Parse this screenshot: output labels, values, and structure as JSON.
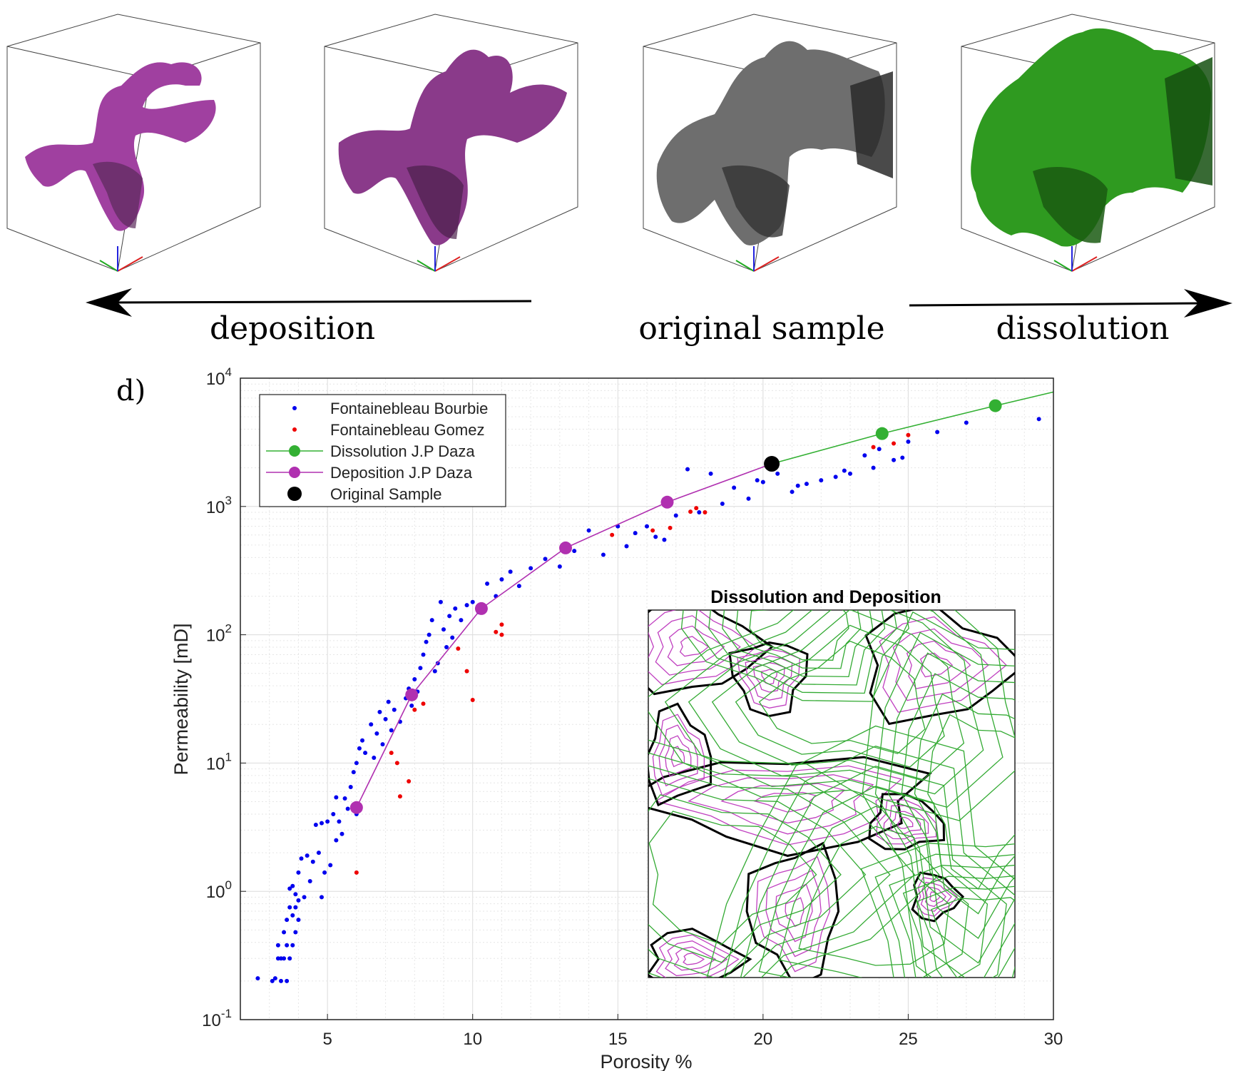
{
  "top_panel": {
    "labels": {
      "deposition": "deposition",
      "original": "original sample",
      "dissolution": "dissolution"
    },
    "cube_colors": [
      "#a040a0",
      "#8a3a8a",
      "#6e6e6e",
      "#2f9a20"
    ]
  },
  "panel_label": "d)",
  "chart_data": {
    "type": "scatter",
    "xlabel": "Porosity %",
    "ylabel": "Permeability [mD]",
    "xlim": [
      2,
      30
    ],
    "ylim": [
      0.1,
      10000
    ],
    "yscale": "log",
    "xticks": [
      5,
      10,
      15,
      20,
      25,
      30
    ],
    "yticks": [
      {
        "value": 0.1,
        "base": "10",
        "exp": "-1"
      },
      {
        "value": 1,
        "base": "10",
        "exp": "0"
      },
      {
        "value": 10,
        "base": "10",
        "exp": "1"
      },
      {
        "value": 100,
        "base": "10",
        "exp": "2"
      },
      {
        "value": 1000,
        "base": "10",
        "exp": "3"
      },
      {
        "value": 10000,
        "base": "10",
        "exp": "4"
      }
    ],
    "grid": true,
    "legend_position": "top-left",
    "series": [
      {
        "name": "Fontainebleau Bourbie",
        "style": "dots",
        "color": "#0000ee",
        "points": [
          [
            2.6,
            0.21
          ],
          [
            3.1,
            0.2
          ],
          [
            3.2,
            0.21
          ],
          [
            3.3,
            0.3
          ],
          [
            3.3,
            0.38
          ],
          [
            3.4,
            0.3
          ],
          [
            3.4,
            0.2
          ],
          [
            3.5,
            0.48
          ],
          [
            3.5,
            0.3
          ],
          [
            3.6,
            0.38
          ],
          [
            3.6,
            0.2
          ],
          [
            3.6,
            0.6
          ],
          [
            3.7,
            1.05
          ],
          [
            3.7,
            0.75
          ],
          [
            3.7,
            0.3
          ],
          [
            3.8,
            1.1
          ],
          [
            3.8,
            0.65
          ],
          [
            3.8,
            0.38
          ],
          [
            3.9,
            0.95
          ],
          [
            3.9,
            0.75
          ],
          [
            3.9,
            0.48
          ],
          [
            4.0,
            0.85
          ],
          [
            4.0,
            0.6
          ],
          [
            4.0,
            1.4
          ],
          [
            4.1,
            1.8
          ],
          [
            4.2,
            0.9
          ],
          [
            4.3,
            1.9
          ],
          [
            4.4,
            1.2
          ],
          [
            4.5,
            1.7
          ],
          [
            4.6,
            3.3
          ],
          [
            4.7,
            2.0
          ],
          [
            4.8,
            0.9
          ],
          [
            4.8,
            3.4
          ],
          [
            4.9,
            1.4
          ],
          [
            5.0,
            3.5
          ],
          [
            5.1,
            1.6
          ],
          [
            5.2,
            4.0
          ],
          [
            5.3,
            2.5
          ],
          [
            5.3,
            5.4
          ],
          [
            5.4,
            3.5
          ],
          [
            5.5,
            2.8
          ],
          [
            5.6,
            5.3
          ],
          [
            5.7,
            4.4
          ],
          [
            5.8,
            6.5
          ],
          [
            5.9,
            8.5
          ],
          [
            6.0,
            10.0
          ],
          [
            6.0,
            4.0
          ],
          [
            6.1,
            13
          ],
          [
            6.2,
            15
          ],
          [
            6.3,
            12
          ],
          [
            6.5,
            20
          ],
          [
            6.6,
            11
          ],
          [
            6.7,
            17
          ],
          [
            6.8,
            25
          ],
          [
            6.9,
            14
          ],
          [
            7.0,
            22
          ],
          [
            7.1,
            30
          ],
          [
            7.2,
            18
          ],
          [
            7.3,
            26
          ],
          [
            7.5,
            21
          ],
          [
            7.7,
            32
          ],
          [
            7.8,
            38
          ],
          [
            7.9,
            28
          ],
          [
            8.0,
            45
          ],
          [
            8.1,
            36
          ],
          [
            8.2,
            55
          ],
          [
            8.3,
            70
          ],
          [
            8.4,
            88
          ],
          [
            8.5,
            100
          ],
          [
            8.6,
            130
          ],
          [
            8.7,
            52
          ],
          [
            8.8,
            60
          ],
          [
            8.9,
            180
          ],
          [
            9.0,
            110
          ],
          [
            9.1,
            80
          ],
          [
            9.2,
            140
          ],
          [
            9.3,
            95
          ],
          [
            9.4,
            160
          ],
          [
            9.6,
            130
          ],
          [
            9.8,
            170
          ],
          [
            10.0,
            180
          ],
          [
            10.2,
            150
          ],
          [
            10.5,
            250
          ],
          [
            10.8,
            200
          ],
          [
            11.0,
            270
          ],
          [
            11.3,
            310
          ],
          [
            11.6,
            240
          ],
          [
            12.0,
            330
          ],
          [
            12.5,
            390
          ],
          [
            13.0,
            340
          ],
          [
            13.5,
            450
          ],
          [
            14.0,
            650
          ],
          [
            14.5,
            420
          ],
          [
            15.0,
            700
          ],
          [
            15.3,
            490
          ],
          [
            15.6,
            620
          ],
          [
            16.0,
            700
          ],
          [
            16.3,
            580
          ],
          [
            16.6,
            550
          ],
          [
            17.0,
            850
          ],
          [
            17.4,
            1950
          ],
          [
            17.8,
            900
          ],
          [
            18.2,
            1800
          ],
          [
            18.6,
            1050
          ],
          [
            19.0,
            1400
          ],
          [
            19.5,
            1150
          ],
          [
            20.0,
            1550
          ],
          [
            20.5,
            1800
          ],
          [
            21.0,
            1300
          ],
          [
            21.5,
            1500
          ],
          [
            22.0,
            1600
          ],
          [
            22.5,
            1700
          ],
          [
            23.0,
            1800
          ],
          [
            23.5,
            2500
          ],
          [
            24.0,
            2800
          ],
          [
            24.5,
            2300
          ],
          [
            25.0,
            3200
          ],
          [
            26.0,
            3800
          ],
          [
            27.0,
            4500
          ],
          [
            28.0,
            6000
          ],
          [
            29.5,
            4800
          ],
          [
            22.8,
            1900
          ],
          [
            23.8,
            2000
          ],
          [
            24.8,
            2400
          ],
          [
            21.2,
            1450
          ],
          [
            19.8,
            1600
          ]
        ]
      },
      {
        "name": "Fontainebleau Gomez",
        "style": "dots",
        "color": "#ee0000",
        "points": [
          [
            6.0,
            1.4
          ],
          [
            7.2,
            12
          ],
          [
            7.4,
            10
          ],
          [
            7.5,
            5.5
          ],
          [
            7.8,
            7.2
          ],
          [
            8.0,
            26
          ],
          [
            8.3,
            29
          ],
          [
            9.5,
            78
          ],
          [
            9.8,
            52
          ],
          [
            10.0,
            31
          ],
          [
            10.8,
            105
          ],
          [
            11.0,
            100
          ],
          [
            11.0,
            120
          ],
          [
            14.8,
            600
          ],
          [
            16.2,
            650
          ],
          [
            16.8,
            680
          ],
          [
            17.5,
            910
          ],
          [
            17.7,
            970
          ],
          [
            18.0,
            900
          ],
          [
            23.8,
            2900
          ],
          [
            24.5,
            3100
          ],
          [
            25.0,
            3600
          ]
        ]
      },
      {
        "name": "Dissolution J.P Daza",
        "style": "line-marker",
        "color": "#33b033",
        "points": [
          [
            20.3,
            2150
          ],
          [
            24.1,
            3700
          ],
          [
            28.0,
            6100
          ],
          [
            30.0,
            7800
          ]
        ],
        "markers": [
          [
            24.1,
            3700
          ],
          [
            28.0,
            6100
          ]
        ]
      },
      {
        "name": "Deposition J.P Daza",
        "style": "line-marker",
        "color": "#b030b0",
        "points": [
          [
            6.0,
            4.5
          ],
          [
            7.9,
            34
          ],
          [
            10.3,
            160
          ],
          [
            13.2,
            475
          ],
          [
            16.7,
            1080
          ],
          [
            20.3,
            2150
          ]
        ],
        "markers": [
          [
            6.0,
            4.5
          ],
          [
            7.9,
            34
          ],
          [
            10.3,
            160
          ],
          [
            13.2,
            475
          ],
          [
            16.7,
            1080
          ]
        ]
      },
      {
        "name": "Original Sample",
        "style": "marker",
        "color": "#000000",
        "points": [
          [
            20.3,
            2150
          ]
        ]
      }
    ],
    "inset": {
      "title": "Dissolution and Deposition",
      "colors": {
        "dissolution": "#33aa33",
        "deposition": "#c040c0",
        "boundary": "#000000"
      }
    }
  }
}
